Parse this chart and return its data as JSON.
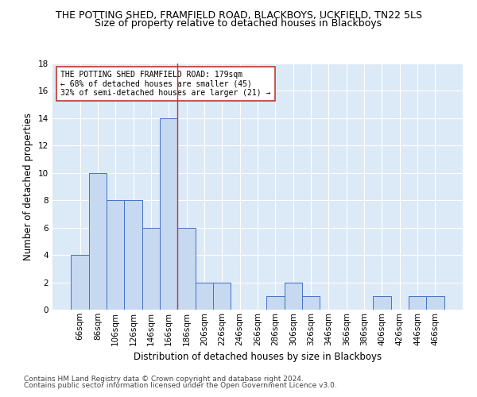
{
  "title": "THE POTTING SHED, FRAMFIELD ROAD, BLACKBOYS, UCKFIELD, TN22 5LS",
  "subtitle": "Size of property relative to detached houses in Blackboys",
  "xlabel": "Distribution of detached houses by size in Blackboys",
  "ylabel": "Number of detached properties",
  "footnote1": "Contains HM Land Registry data © Crown copyright and database right 2024.",
  "footnote2": "Contains public sector information licensed under the Open Government Licence v3.0.",
  "categories": [
    "66sqm",
    "86sqm",
    "106sqm",
    "126sqm",
    "146sqm",
    "166sqm",
    "186sqm",
    "206sqm",
    "226sqm",
    "246sqm",
    "266sqm",
    "286sqm",
    "306sqm",
    "326sqm",
    "346sqm",
    "366sqm",
    "386sqm",
    "406sqm",
    "426sqm",
    "446sqm",
    "466sqm"
  ],
  "values": [
    4,
    10,
    8,
    8,
    6,
    14,
    6,
    2,
    2,
    0,
    0,
    1,
    2,
    1,
    0,
    0,
    0,
    1,
    0,
    1,
    1
  ],
  "bar_color": "#c6d9f0",
  "bar_edge_color": "#4472c4",
  "reference_line_color": "#c0392b",
  "ylim": [
    0,
    18
  ],
  "yticks": [
    0,
    2,
    4,
    6,
    8,
    10,
    12,
    14,
    16,
    18
  ],
  "annotation_text": "THE POTTING SHED FRAMFIELD ROAD: 179sqm\n← 68% of detached houses are smaller (45)\n32% of semi-detached houses are larger (21) →",
  "annotation_box_color": "#ffffff",
  "annotation_box_edge_color": "#c0392b",
  "background_color": "#dce9f7",
  "grid_color": "#ffffff",
  "title_fontsize": 9,
  "subtitle_fontsize": 9,
  "axis_label_fontsize": 8.5,
  "tick_fontsize": 7.5,
  "annotation_fontsize": 7,
  "footnote_fontsize": 6.5
}
